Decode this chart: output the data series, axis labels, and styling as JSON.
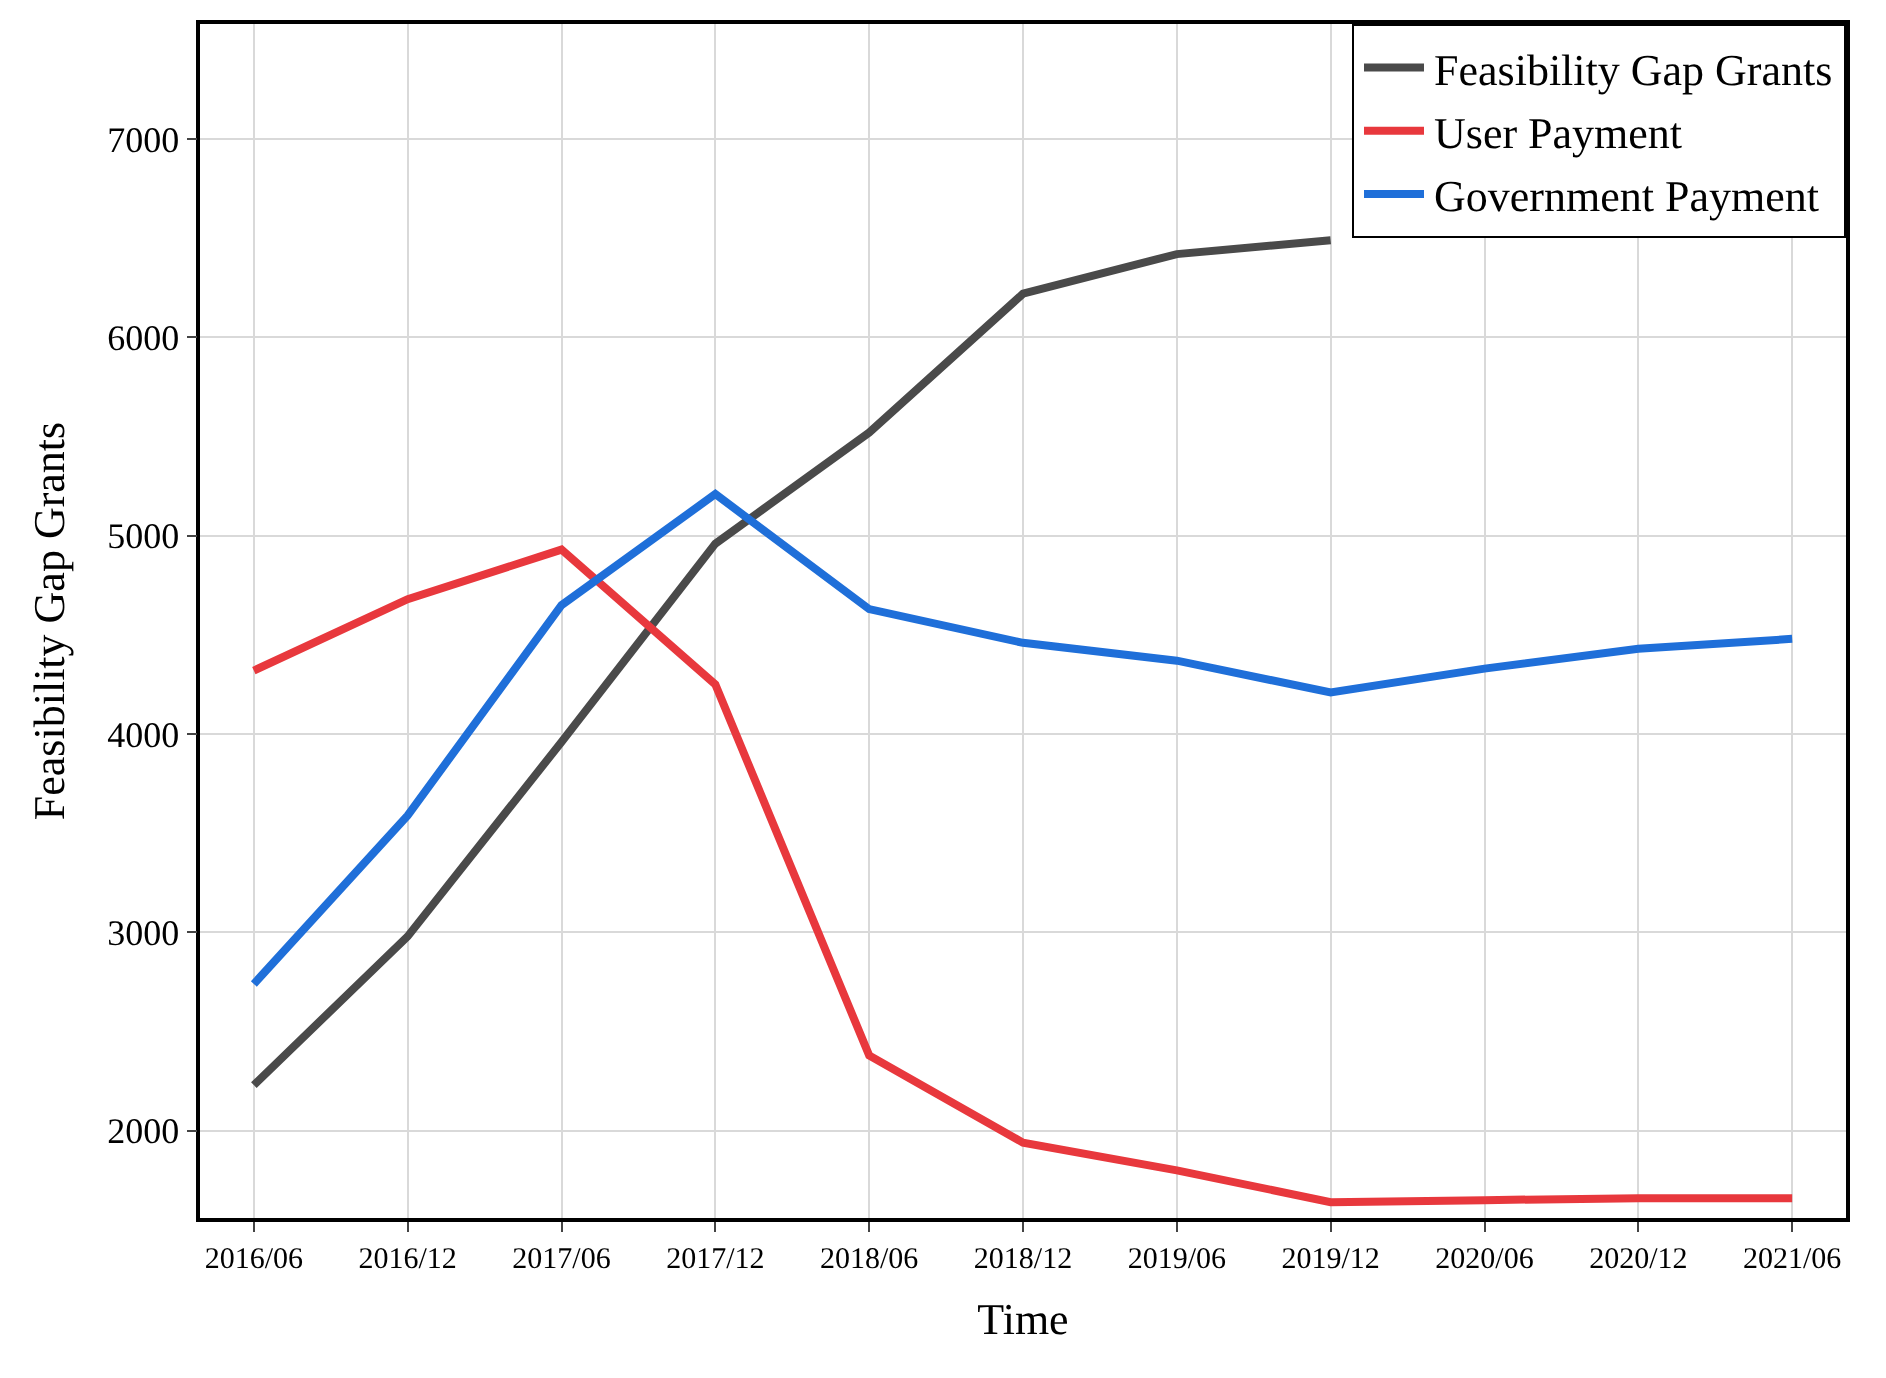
{
  "chart_data": {
    "type": "line",
    "xlabel": "Time",
    "ylabel": "Feasibility Gap Grants",
    "categories": [
      "2016/06",
      "2016/12",
      "2017/06",
      "2017/12",
      "2018/06",
      "2018/12",
      "2019/06",
      "2019/12",
      "2020/06",
      "2020/12",
      "2021/06"
    ],
    "series": [
      {
        "name": "Feasibility Gap Grants",
        "color": "#4a4a4a",
        "values": [
          2230,
          2980,
          3960,
          4960,
          5520,
          6220,
          6420,
          6490,
          null,
          null,
          null
        ]
      },
      {
        "name": "User Payment",
        "color": "#e8383d",
        "values": [
          4320,
          4680,
          4930,
          4250,
          2380,
          1940,
          1800,
          1640,
          1650,
          1660,
          1660
        ]
      },
      {
        "name": "Government Payment",
        "color": "#1f6fd9",
        "values": [
          2740,
          3590,
          4650,
          5210,
          4630,
          4460,
          4370,
          4210,
          4330,
          4430,
          4480
        ]
      }
    ],
    "ylim": [
      1560,
      7580
    ],
    "yticks": [
      2000,
      3000,
      4000,
      5000,
      6000,
      7000
    ],
    "grid": true,
    "legend": "top right",
    "marker": "none",
    "line_style": "solid"
  }
}
